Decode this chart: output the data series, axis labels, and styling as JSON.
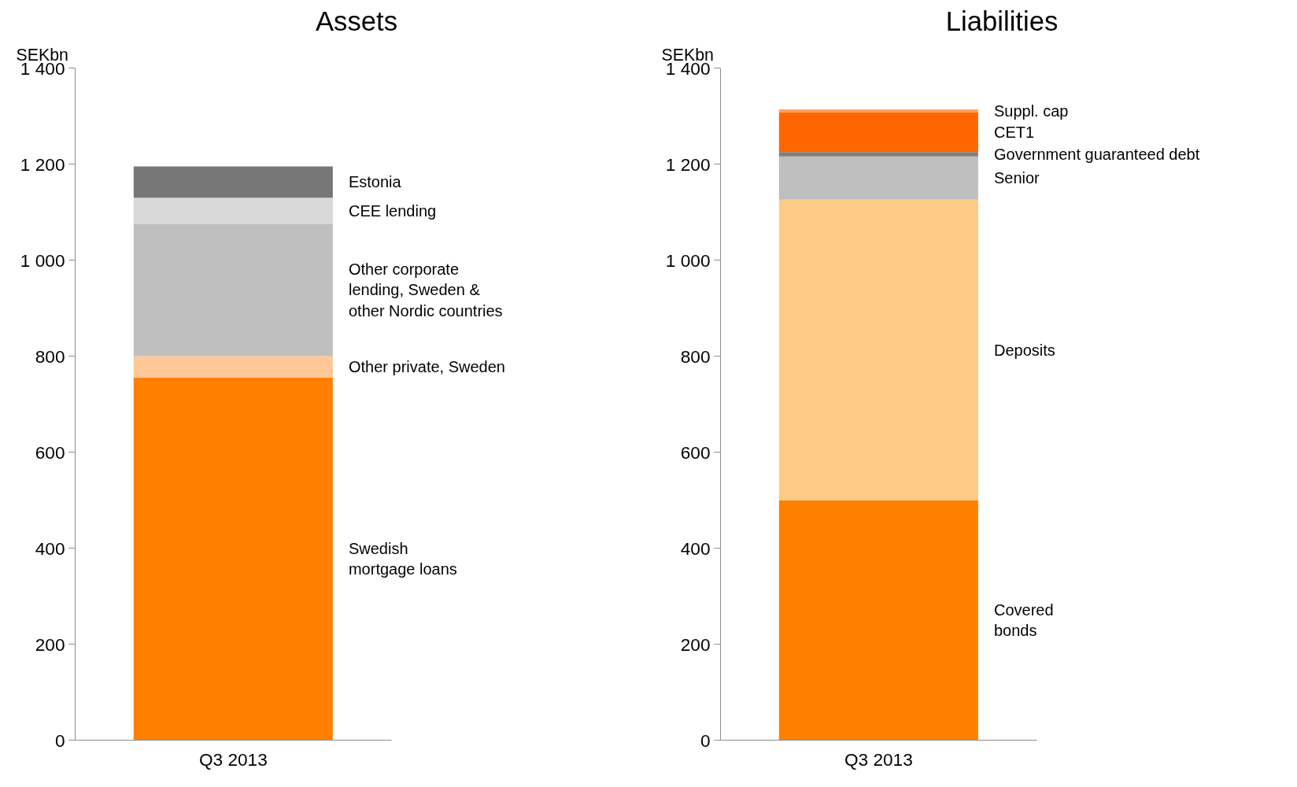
{
  "chart_data": [
    {
      "type": "bar",
      "title": "Assets",
      "ylabel": "SEKbn",
      "stacked": true,
      "grid": false,
      "categories": [
        "Q3 2013"
      ],
      "ylim": [
        0,
        1400
      ],
      "yticks": [
        0,
        200,
        400,
        600,
        800,
        {
          "value": 1000,
          "label": "1 000"
        },
        {
          "value": 1200,
          "label": "1 200"
        },
        {
          "value": 1400,
          "label": "1 400"
        }
      ],
      "series": [
        {
          "name": "Swedish\nmortgage loans",
          "color": "#ff8000",
          "values": [
            755
          ]
        },
        {
          "name": "Other private, Sweden",
          "color": "#ffc896",
          "values": [
            45
          ]
        },
        {
          "name": "Other corporate\nlending, Sweden &\nother Nordic countries",
          "color": "#bfbfbf",
          "values": [
            276
          ]
        },
        {
          "name": "CEE lending",
          "color": "#d9d9d9",
          "values": [
            54
          ]
        },
        {
          "name": "Estonia",
          "color": "#777777",
          "values": [
            65
          ]
        }
      ]
    },
    {
      "type": "bar",
      "title": "Liabilities",
      "ylabel": "SEKbn",
      "stacked": true,
      "grid": false,
      "categories": [
        "Q3 2013"
      ],
      "ylim": [
        0,
        1400
      ],
      "yticks": [
        0,
        200,
        400,
        600,
        800,
        {
          "value": 1000,
          "label": "1 000"
        },
        {
          "value": 1200,
          "label": "1 200"
        },
        {
          "value": 1400,
          "label": "1 400"
        }
      ],
      "series": [
        {
          "name": "Covered\nbonds",
          "color": "#ff8000",
          "values": [
            500
          ]
        },
        {
          "name": "Deposits",
          "color": "#fdcb85",
          "values": [
            626
          ]
        },
        {
          "name": "Senior",
          "color": "#bfbfbf",
          "values": [
            90
          ]
        },
        {
          "name": "Government guaranteed debt",
          "color": "#7f7f7f",
          "values": [
            9
          ]
        },
        {
          "name": "CET1",
          "color": "#ff6600",
          "values": [
            83
          ]
        },
        {
          "name": "Suppl. cap",
          "color": "#ffa060",
          "values": [
            6
          ]
        }
      ]
    }
  ]
}
